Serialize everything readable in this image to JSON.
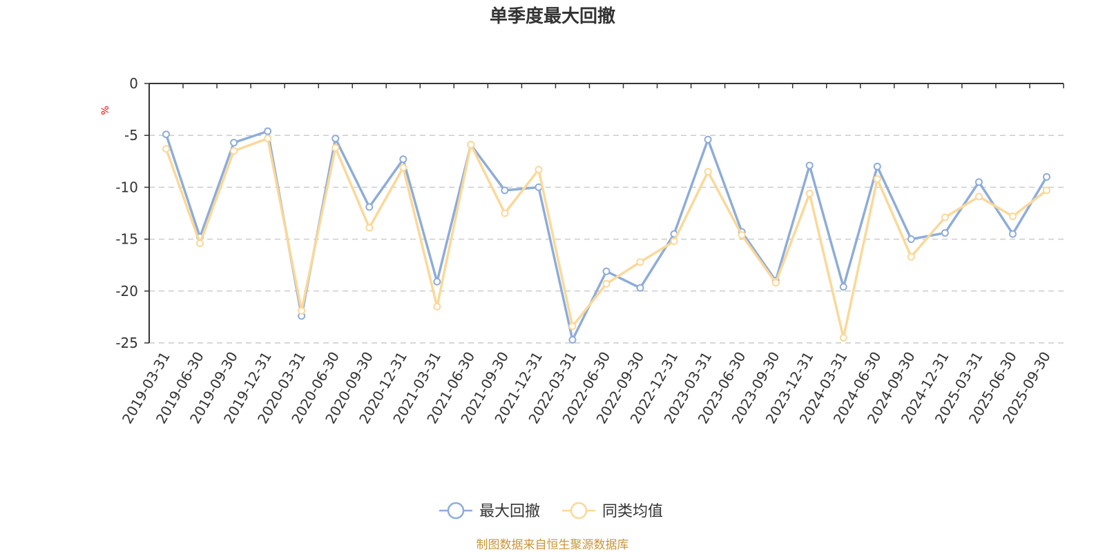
{
  "chart_data": {
    "type": "line",
    "title": "单季度最大回撤",
    "ylabel": "%",
    "ylim": [
      -25,
      0
    ],
    "yticks": [
      0,
      -5,
      -10,
      -15,
      -20,
      -25
    ],
    "grid": true,
    "legend_position": "bottom-center",
    "categories": [
      "2019-03-31",
      "2019-06-30",
      "2019-09-30",
      "2019-12-31",
      "2020-03-31",
      "2020-06-30",
      "2020-09-30",
      "2020-12-31",
      "2021-03-31",
      "2021-06-30",
      "2021-09-30",
      "2021-12-31",
      "2022-03-31",
      "2022-06-30",
      "2022-09-30",
      "2022-12-31",
      "2023-03-31",
      "2023-06-30",
      "2023-09-30",
      "2023-12-31",
      "2024-03-31",
      "2024-06-30",
      "2024-09-30",
      "2024-12-31",
      "2025-03-31",
      "2025-06-30",
      "2025-09-30"
    ],
    "series": [
      {
        "name": "最大回撤",
        "color": "#8eacd9",
        "values": [
          -4.9,
          -14.8,
          -5.7,
          -4.6,
          -22.4,
          -5.3,
          -11.9,
          -7.3,
          -19.1,
          -5.9,
          -10.3,
          -10.0,
          -24.7,
          -18.1,
          -19.7,
          -14.5,
          -5.4,
          -14.3,
          -19.0,
          -7.9,
          -19.6,
          -8.0,
          -15.0,
          -14.4,
          -9.5,
          -14.5,
          -9.0
        ]
      },
      {
        "name": "同类均值",
        "color": "#fbd898",
        "values": [
          -6.3,
          -15.4,
          -6.5,
          -5.3,
          -21.9,
          -6.2,
          -13.9,
          -8.1,
          -21.5,
          -5.9,
          -12.5,
          -8.3,
          -23.4,
          -19.3,
          -17.2,
          -15.2,
          -8.5,
          -14.6,
          -19.2,
          -10.6,
          -24.5,
          -9.2,
          -16.7,
          -12.9,
          -10.9,
          -12.8,
          -10.3
        ]
      }
    ]
  },
  "footer": {
    "source": "制图数据来自恒生聚源数据库"
  }
}
